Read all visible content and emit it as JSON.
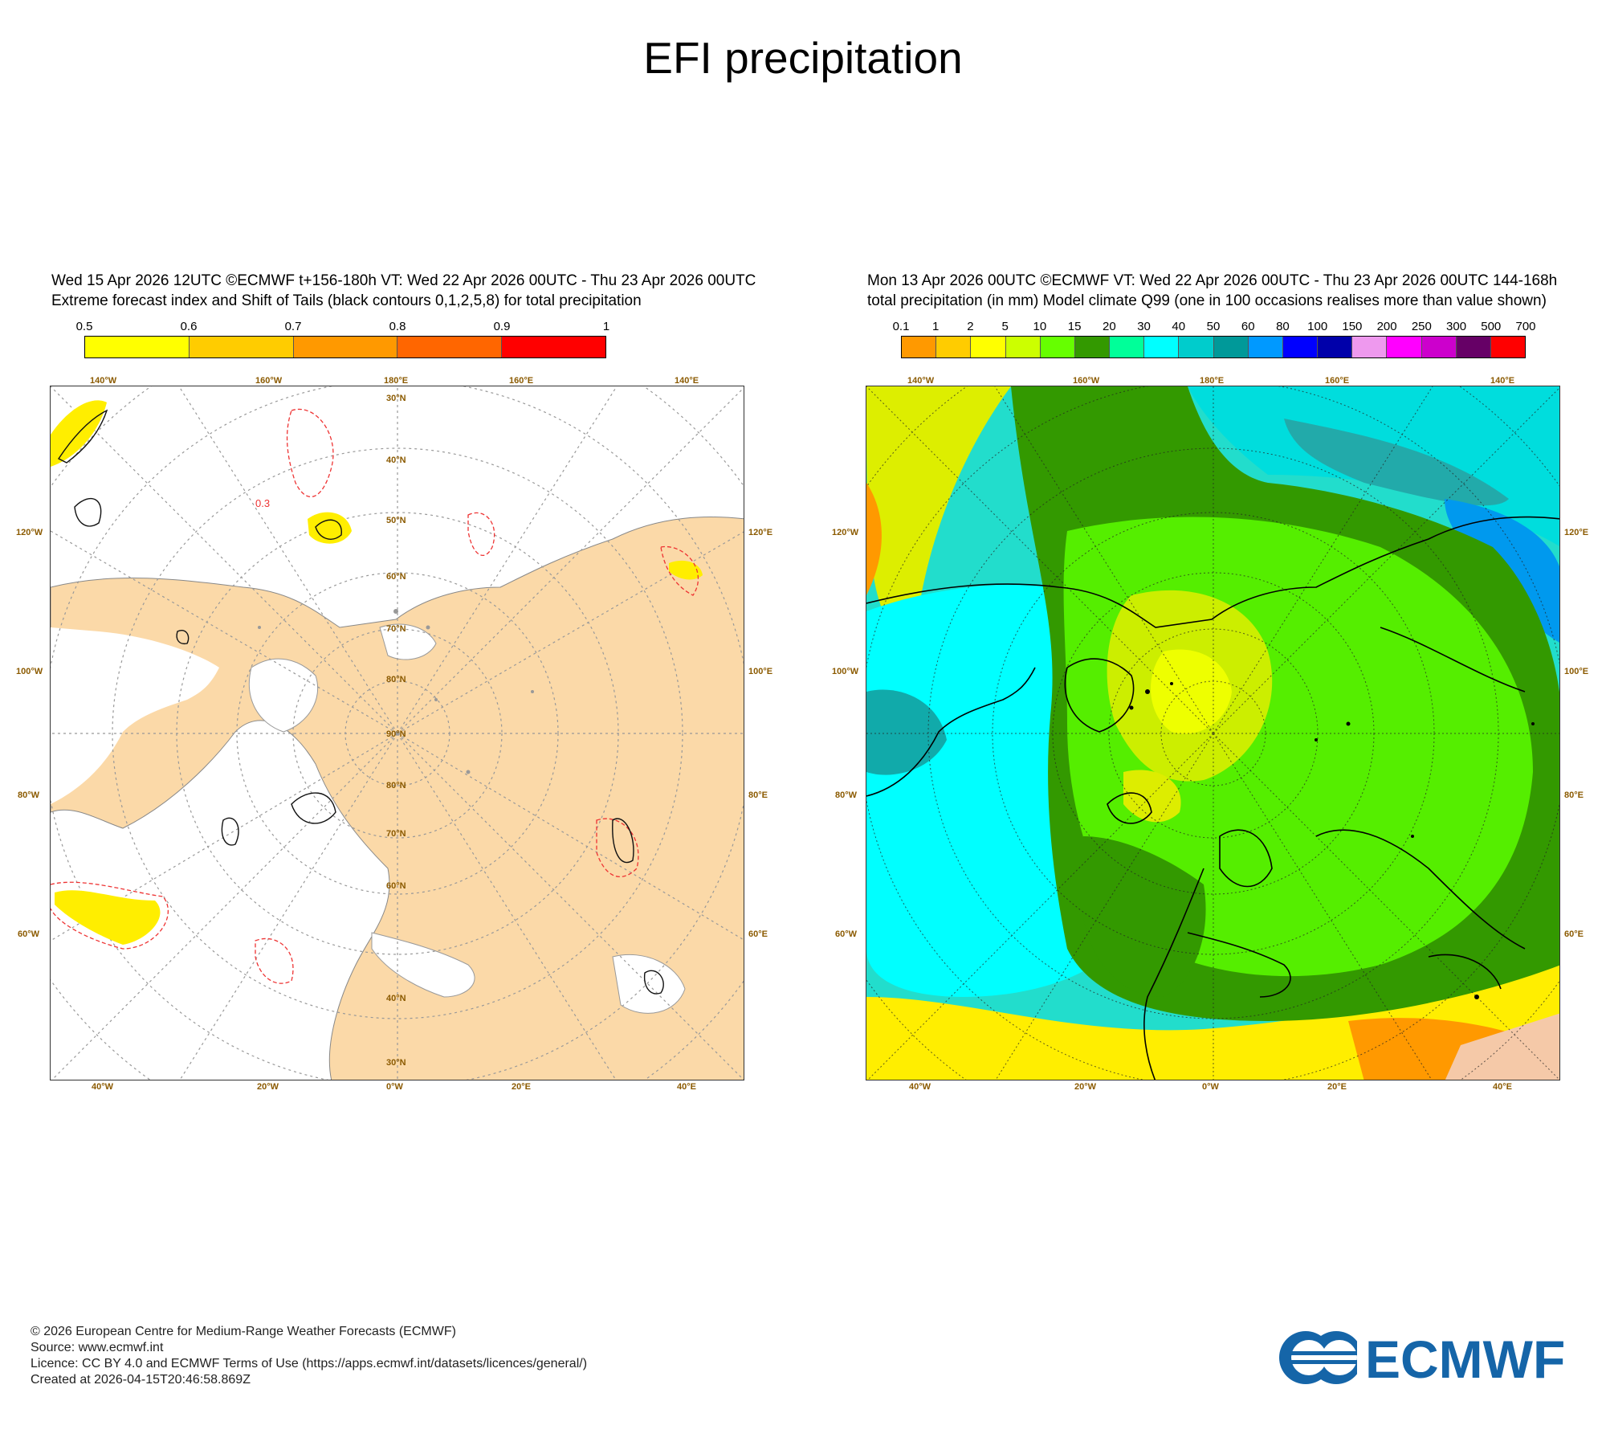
{
  "title": "EFI precipitation",
  "left_panel": {
    "header_line1": "Wed 15 Apr 2026 12UTC ©ECMWF t+156-180h  VT: Wed 22 Apr 2026 00UTC - Thu 23 Apr 2026 00UTC",
    "header_line2": "Extreme forecast index and Shift of Tails (black contours 0,1,2,5,8) for total precipitation",
    "colorbar": {
      "labels": [
        "0.5",
        "0.6",
        "0.7",
        "0.8",
        "0.9",
        "1"
      ],
      "colors": [
        "#ffff00",
        "#ffcc00",
        "#ff9900",
        "#ff6600",
        "#ff0000"
      ]
    },
    "contour_label": "0.3"
  },
  "right_panel": {
    "header_line1": "Mon 13 Apr 2026 00UTC ©ECMWF VT: Wed 22 Apr 2026 00UTC - Thu 23 Apr 2026 00UTC   144-168h",
    "header_line2": "total precipitation (in mm)  Model climate Q99 (one in 100 occasions realises more than value shown)",
    "colorbar": {
      "labels": [
        "0.1",
        "1",
        "2",
        "5",
        "10",
        "15",
        "20",
        "30",
        "40",
        "50",
        "60",
        "80",
        "100",
        "150",
        "200",
        "250",
        "300",
        "500",
        "700"
      ],
      "colors": [
        "#ff9900",
        "#ffcc00",
        "#ffff00",
        "#ccff00",
        "#66ff00",
        "#339900",
        "#00ff99",
        "#00ffff",
        "#00cccc",
        "#009999",
        "#0099ff",
        "#0000ff",
        "#0000aa",
        "#ee99ee",
        "#ff00ff",
        "#cc00cc",
        "#660066",
        "#ff0000"
      ]
    }
  },
  "map_labels": {
    "top": [
      "140°W",
      "160°W",
      "180°E",
      "160°E",
      "140°E"
    ],
    "bottom": [
      "40°W",
      "20°W",
      "0°W",
      "20°E",
      "40°E"
    ],
    "left": [
      "120°W",
      "100°W",
      "80°W",
      "60°W"
    ],
    "right": [
      "120°E",
      "100°E",
      "80°E",
      "60°E"
    ],
    "lat": [
      "30°N",
      "40°N",
      "50°N",
      "60°N",
      "70°N",
      "80°N",
      "90°N"
    ]
  },
  "footer": {
    "line1": "© 2026 European Centre for Medium-Range Weather Forecasts (ECMWF)",
    "line2": "Source: www.ecmwf.int",
    "line3": "Licence: CC BY 4.0 and ECMWF Terms of Use (https://apps.ecmwf.int/datasets/licences/general/)",
    "line4": "Created at 2026-04-15T20:46:58.869Z"
  },
  "logo_text": "ECMWF"
}
